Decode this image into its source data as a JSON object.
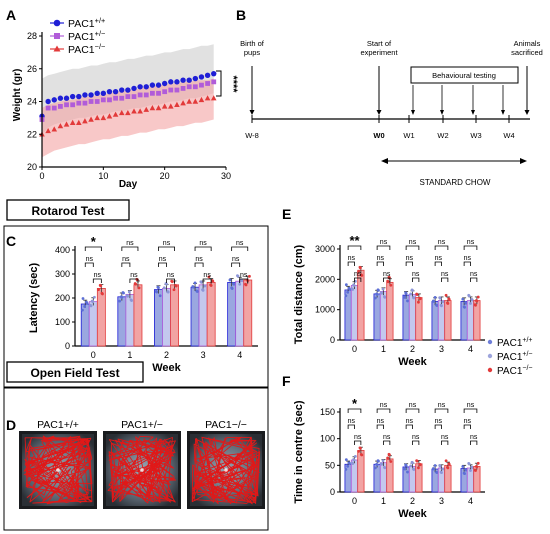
{
  "panel_labels": {
    "A": "A",
    "B": "B",
    "C": "C",
    "D": "D",
    "E": "E",
    "F": "F"
  },
  "colors": {
    "pac1_wt": "#1f1fd6",
    "pac1_het": "#b15cd9",
    "pac1_ko": "#e23a3a",
    "grey_band": "#c9c9c9",
    "red_band": "#f3a3a3",
    "grid": "#000000"
  },
  "chart_data": [
    {
      "id": "A",
      "type": "line",
      "title": "",
      "xlabel": "Day",
      "ylabel": "Weight (gr)",
      "xlim": [
        0,
        30
      ],
      "ylim": [
        20,
        28
      ],
      "xticks": [
        "0",
        "10",
        "20",
        "30"
      ],
      "yticks": [
        "20",
        "22",
        "24",
        "26",
        "28"
      ],
      "significance": "****",
      "legend_placement": "top-left",
      "legend": [
        {
          "base": "PAC1",
          "sup": "+/+"
        },
        {
          "base": "PAC1",
          "sup": "+/−"
        },
        {
          "base": "PAC1",
          "sup": "−/−"
        }
      ],
      "x": [
        0,
        1,
        2,
        3,
        4,
        5,
        6,
        7,
        8,
        9,
        10,
        11,
        12,
        13,
        14,
        15,
        16,
        17,
        18,
        19,
        20,
        21,
        22,
        23,
        24,
        25,
        26,
        27,
        28
      ],
      "series": [
        {
          "values": [
            23.1,
            24.0,
            24.1,
            24.2,
            24.2,
            24.3,
            24.3,
            24.4,
            24.4,
            24.5,
            24.5,
            24.6,
            24.6,
            24.7,
            24.7,
            24.8,
            24.9,
            24.9,
            25.0,
            25.0,
            25.1,
            25.2,
            25.2,
            25.3,
            25.3,
            25.4,
            25.5,
            25.6,
            25.7
          ]
        },
        {
          "values": [
            22.9,
            23.6,
            23.6,
            23.7,
            23.8,
            23.8,
            23.9,
            23.9,
            24.0,
            24.0,
            24.1,
            24.1,
            24.2,
            24.2,
            24.3,
            24.3,
            24.4,
            24.4,
            24.5,
            24.5,
            24.6,
            24.7,
            24.7,
            24.8,
            24.9,
            24.9,
            25.0,
            25.1,
            25.2
          ]
        },
        {
          "values": [
            22.0,
            22.2,
            22.3,
            22.5,
            22.6,
            22.7,
            22.7,
            22.8,
            22.9,
            23.0,
            23.0,
            23.1,
            23.2,
            23.3,
            23.3,
            23.4,
            23.4,
            23.5,
            23.6,
            23.6,
            23.7,
            23.7,
            23.8,
            23.9,
            24.0,
            24.0,
            24.1,
            24.2,
            24.2
          ]
        }
      ],
      "grey_band": {
        "upper": [
          25.4,
          25.6,
          25.7,
          25.8,
          25.9,
          26.0,
          26.0,
          26.1,
          26.2,
          26.2,
          26.3,
          26.4,
          26.4,
          26.5,
          26.6,
          26.6,
          26.7,
          26.8,
          26.8,
          26.9,
          27.0,
          27.0,
          27.1,
          27.2,
          27.2,
          27.3,
          27.4,
          27.4,
          27.5
        ],
        "lower": [
          22.0,
          22.4,
          22.6,
          22.7,
          22.8,
          22.9,
          23.0,
          23.0,
          23.1,
          23.2,
          23.2,
          23.3,
          23.4,
          23.4,
          23.5,
          23.6,
          23.6,
          23.7,
          23.8,
          23.8,
          23.9,
          24.0,
          24.0,
          24.1,
          24.2,
          24.2,
          24.3,
          24.4,
          24.5
        ]
      },
      "red_band": {
        "upper": [
          23.6,
          23.8,
          23.9,
          24.0,
          24.1,
          24.1,
          24.2,
          24.3,
          24.3,
          24.4,
          24.4,
          24.5,
          24.6,
          24.6,
          24.7,
          24.7,
          24.8,
          24.9,
          24.9,
          25.0,
          25.0,
          25.1,
          25.1,
          25.2,
          25.2,
          25.3,
          25.3,
          25.3,
          25.4
        ],
        "lower": [
          20.6,
          20.8,
          21.0,
          21.1,
          21.2,
          21.3,
          21.4,
          21.4,
          21.5,
          21.6,
          21.7,
          21.7,
          21.8,
          21.9,
          21.9,
          22.0,
          22.1,
          22.1,
          22.2,
          22.3,
          22.3,
          22.4,
          22.5,
          22.5,
          22.6,
          22.7,
          22.7,
          22.8,
          22.9
        ]
      }
    },
    {
      "id": "C",
      "type": "bar",
      "header": "Rotarod Test",
      "xlabel": "Week",
      "ylabel": "Latency (sec)",
      "ylim": [
        0,
        400
      ],
      "yticks": [
        "0",
        "100",
        "200",
        "300",
        "400"
      ],
      "categories": [
        "0",
        "1",
        "2",
        "3",
        "4"
      ],
      "series": [
        {
          "values": [
            175,
            205,
            235,
            245,
            265
          ]
        },
        {
          "values": [
            185,
            215,
            240,
            255,
            270
          ]
        },
        {
          "values": [
            240,
            255,
            255,
            265,
            275
          ]
        }
      ],
      "significance": [
        {
          "pair": "wt-ko",
          "labels": [
            "*",
            "ns",
            "ns",
            "ns",
            "ns"
          ]
        },
        {
          "pair": "wt-het",
          "labels": [
            "ns",
            "ns",
            "ns",
            "ns",
            "ns"
          ]
        },
        {
          "pair": "het-ko",
          "labels": [
            "ns",
            "ns",
            "ns",
            "ns",
            "ns"
          ]
        }
      ]
    },
    {
      "id": "E",
      "type": "bar",
      "xlabel": "Week",
      "ylabel": "Total distance (cm)",
      "ylim": [
        0,
        3000
      ],
      "yticks": [
        "0",
        "1000",
        "2000",
        "3000"
      ],
      "categories": [
        "0",
        "1",
        "2",
        "3",
        "4"
      ],
      "series": [
        {
          "values": [
            1650,
            1520,
            1480,
            1270,
            1270
          ]
        },
        {
          "values": [
            1800,
            1600,
            1500,
            1300,
            1300
          ]
        },
        {
          "values": [
            2300,
            1900,
            1400,
            1300,
            1300
          ]
        }
      ],
      "significance": [
        {
          "pair": "wt-ko",
          "labels": [
            "**",
            "ns",
            "ns",
            "ns",
            "ns"
          ]
        },
        {
          "pair": "wt-het",
          "labels": [
            "ns",
            "ns",
            "ns",
            "ns",
            "ns"
          ]
        },
        {
          "pair": "het-ko",
          "labels": [
            "ns",
            "ns",
            "ns",
            "ns",
            "ns"
          ]
        }
      ]
    },
    {
      "id": "F",
      "type": "bar",
      "xlabel": "Week",
      "ylabel": "Time in centre (sec)",
      "ylim": [
        0,
        150
      ],
      "yticks": [
        "0",
        "50",
        "100",
        "150"
      ],
      "categories": [
        "0",
        "1",
        "2",
        "3",
        "4"
      ],
      "series": [
        {
          "values": [
            52,
            52,
            47,
            43,
            44
          ]
        },
        {
          "values": [
            60,
            55,
            48,
            45,
            45
          ]
        },
        {
          "values": [
            78,
            62,
            53,
            50,
            48
          ]
        }
      ],
      "significance": [
        {
          "pair": "wt-ko",
          "labels": [
            "*",
            "ns",
            "ns",
            "ns",
            "ns"
          ]
        },
        {
          "pair": "wt-het",
          "labels": [
            "ns",
            "ns",
            "ns",
            "ns",
            "ns"
          ]
        },
        {
          "pair": "het-ko",
          "labels": [
            "ns",
            "ns",
            "ns",
            "ns",
            "ns"
          ]
        }
      ],
      "legend_placement": "top-right",
      "legend": [
        {
          "base": "PAC1",
          "sup": "+/+"
        },
        {
          "base": "PAC1",
          "sup": "+/−"
        },
        {
          "base": "PAC1",
          "sup": "−/−"
        }
      ]
    }
  ],
  "timeline": {
    "ticks": [
      "W-8",
      "W0",
      "W1",
      "W2",
      "W3",
      "W4"
    ],
    "birth": "Birth of pups",
    "start": "Start of experiment",
    "animals": "Animals sacrificed",
    "behaviour": "Behavioural testing",
    "chow": "STANDARD CHOW"
  },
  "open_field": {
    "header": "Open Field Test",
    "labels": [
      "PAC1+/+",
      "PAC1+/−",
      "PAC1−/−"
    ]
  }
}
